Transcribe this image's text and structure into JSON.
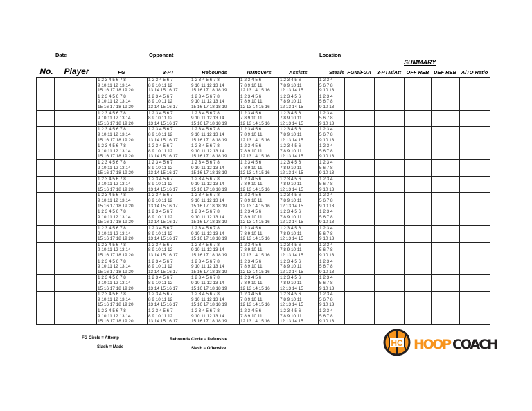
{
  "form": {
    "date_label": "Date",
    "opponent_label": "Opponent",
    "location_label": "Location",
    "summary_label": "SUMMARY"
  },
  "columns": {
    "no": "No.",
    "player": "Player",
    "fg": "FG",
    "three_pt": "3-PT",
    "rebounds": "Rebounds",
    "turnovers": "Turnovers",
    "assists": "Assists",
    "steals": "Steals",
    "fgm_fga": "FGM/FGA",
    "three_ptm_att": "3-PTM/Att",
    "off_reb": "OFF REB",
    "def_reb": "DEF REB",
    "ato_ratio": "A/TO Ratio"
  },
  "tally": {
    "fg": [
      "1 2 3 4 5 6 7 8",
      "9 10 11 12 13 14",
      "15 16 17 18 19 20"
    ],
    "three_pt": [
      "1 2 3 4 5 6 7",
      "8 9 10 11 12",
      "13 14 15 16 17"
    ],
    "rebounds": [
      "1 2 3 4 5 6 7 8",
      "9 10 11 12 13 14",
      "15 16 17 18 18 19"
    ],
    "turnovers": [
      "1 2 3 4 5 6",
      "7 8 9 10 11",
      "12 13 14 15 16"
    ],
    "assists": [
      "1 2 3 4 5 6",
      "7 8 9 10 11",
      "12 13 14 15"
    ],
    "steals": [
      "1 2 3 4",
      "5 6 7 8",
      "9 10 13"
    ]
  },
  "rows": [
    {},
    {},
    {},
    {},
    {},
    {},
    {},
    {},
    {},
    {},
    {},
    {},
    {},
    {},
    {}
  ],
  "legend": {
    "fg_circle": "FG Circle = Attemp",
    "fg_slash": "Slash = Made",
    "reb_circle": "Rebounds Circle = Defensive",
    "reb_slash": "Slash = Offensive"
  },
  "logo": {
    "mark": "HC",
    "text_a": "HOOP",
    "text_b": "COACH",
    "orange": "#f7941d",
    "dark": "#231f20"
  }
}
